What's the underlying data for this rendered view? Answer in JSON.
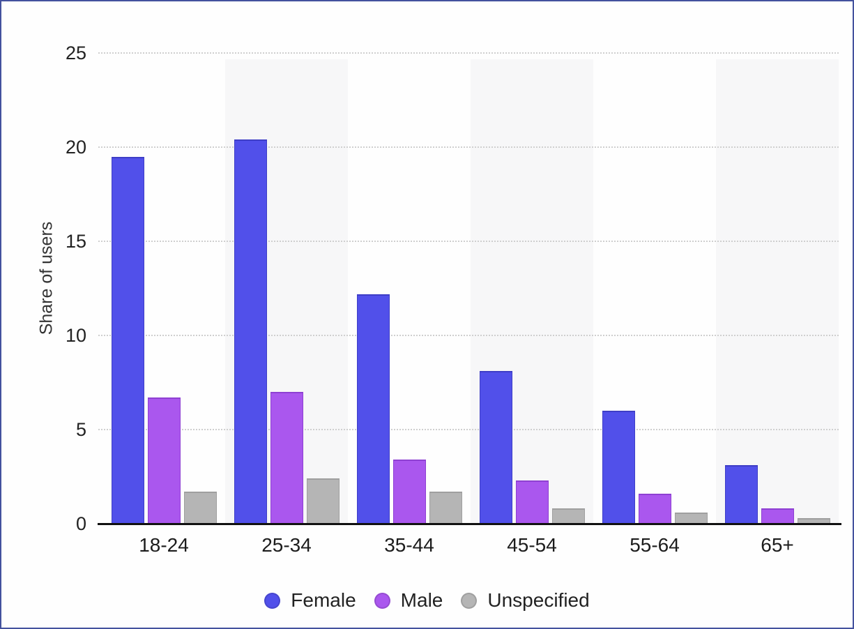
{
  "frame": {
    "border_color": "#44529e",
    "background": "#fefefe"
  },
  "chart_data": {
    "type": "bar",
    "title": "",
    "xlabel": "",
    "ylabel": "Share of users",
    "categories": [
      "18-24",
      "25-34",
      "35-44",
      "45-54",
      "55-64",
      "65+"
    ],
    "series": [
      {
        "name": "Female",
        "color": "#5150ea",
        "stroke": "#3e3ec6",
        "values": [
          19.5,
          20.4,
          12.2,
          8.1,
          6,
          3.1
        ]
      },
      {
        "name": "Male",
        "color": "#aa57ee",
        "stroke": "#8e40d2",
        "values": [
          6.7,
          7,
          3.4,
          2.3,
          1.6,
          0.8
        ]
      },
      {
        "name": "Unspecified",
        "color": "#b5b5b5",
        "stroke": "#9f9f9f",
        "values": [
          1.7,
          2.4,
          1.7,
          0.8,
          0.6,
          0.3
        ]
      }
    ],
    "yticks": [
      0,
      5,
      10,
      15,
      20,
      25
    ],
    "ylim": [
      0,
      25
    ],
    "grid": "horizontal-dotted",
    "gridline_color": "#cfcfcf",
    "band_color": "#f7f7f8",
    "banded_category_indexes": [
      1,
      3,
      5
    ],
    "axis_color": "#111111",
    "legend_position": "bottom"
  }
}
